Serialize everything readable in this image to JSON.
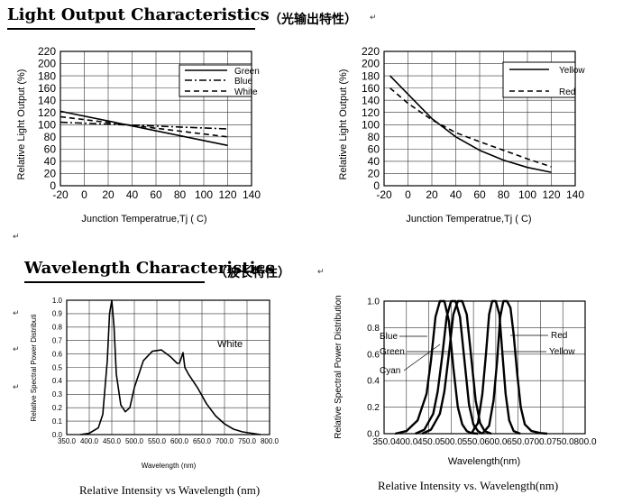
{
  "sections": {
    "light_output": {
      "title": "Light Output Characteristics",
      "title_cn": "（光输出特性）"
    },
    "wavelength": {
      "title": "Wavelength Characteristics",
      "title_cn": "（波长特性）"
    }
  },
  "marks": {
    "return_symbol": "↵"
  },
  "chart_data": [
    {
      "type": "line",
      "xlabel": "Junction Temperatrue,Tj ( C)",
      "ylabel": "Relative Light Output (%)",
      "xlim": [
        -20,
        140
      ],
      "ylim": [
        0,
        220
      ],
      "xticks": [
        -20,
        0,
        20,
        40,
        60,
        80,
        100,
        120,
        140
      ],
      "yticks": [
        0,
        20,
        40,
        60,
        80,
        100,
        120,
        140,
        160,
        180,
        200,
        220
      ],
      "grid": true,
      "legend_position": "top-right",
      "series": [
        {
          "name": "Green",
          "style": "solid",
          "x": [
            -20,
            120
          ],
          "y": [
            122,
            66
          ]
        },
        {
          "name": "Blue",
          "style": "dashdot",
          "x": [
            -20,
            120
          ],
          "y": [
            104,
            93
          ]
        },
        {
          "name": "White",
          "style": "dashed",
          "x": [
            -20,
            120
          ],
          "y": [
            113,
            80
          ]
        }
      ]
    },
    {
      "type": "line",
      "xlabel": "Junction Temperatrue,Tj ( C)",
      "ylabel": "Relative Light Output (%)",
      "xlim": [
        -20,
        140
      ],
      "ylim": [
        0,
        220
      ],
      "xticks": [
        -20,
        0,
        20,
        40,
        60,
        80,
        100,
        120,
        140
      ],
      "yticks": [
        0,
        20,
        40,
        60,
        80,
        100,
        120,
        140,
        160,
        180,
        200,
        220
      ],
      "grid": true,
      "legend_position": "top-right",
      "series": [
        {
          "name": "Yellow",
          "style": "solid",
          "x": [
            -15,
            0,
            20,
            40,
            60,
            80,
            100,
            120
          ],
          "y": [
            180,
            150,
            110,
            80,
            58,
            42,
            30,
            22
          ]
        },
        {
          "name": "Red",
          "style": "dashed",
          "x": [
            -15,
            0,
            20,
            40,
            60,
            80,
            100,
            120
          ],
          "y": [
            160,
            135,
            108,
            87,
            72,
            58,
            44,
            31
          ]
        }
      ]
    },
    {
      "type": "line",
      "title": "Relative Intensity vs Wavelength (nm)",
      "xlabel": "Wavelength (nm)",
      "ylabel": "Relative Spectral Power Distributi",
      "xlim": [
        350,
        800
      ],
      "ylim": [
        0,
        1
      ],
      "xticks": [
        350,
        400,
        450,
        500,
        550,
        600,
        650,
        700,
        750,
        800
      ],
      "yticks": [
        0.0,
        0.1,
        0.2,
        0.3,
        0.4,
        0.5,
        0.6,
        0.7,
        0.8,
        0.9,
        1.0
      ],
      "grid": true,
      "annotations": [
        "White"
      ],
      "series": [
        {
          "style": "solid",
          "x": [
            380,
            400,
            420,
            430,
            440,
            445,
            450,
            455,
            460,
            470,
            480,
            490,
            500,
            520,
            540,
            560,
            580,
            595,
            600,
            605,
            608,
            612,
            620,
            640,
            660,
            680,
            700,
            720,
            740,
            760,
            780
          ],
          "y": [
            0.0,
            0.01,
            0.05,
            0.15,
            0.55,
            0.9,
            1.0,
            0.8,
            0.45,
            0.22,
            0.17,
            0.2,
            0.35,
            0.55,
            0.62,
            0.63,
            0.58,
            0.53,
            0.53,
            0.58,
            0.61,
            0.5,
            0.45,
            0.35,
            0.23,
            0.14,
            0.08,
            0.04,
            0.02,
            0.01,
            0.0
          ]
        }
      ]
    },
    {
      "type": "line",
      "title": "Relative Intensity vs. Wavelength(nm)",
      "xlabel": "Wavelength(nm)",
      "ylabel": "Relative Spectral Power Distribution",
      "xlim": [
        350,
        800
      ],
      "ylim": [
        0,
        1
      ],
      "xticks": [
        350,
        400,
        450,
        500,
        550,
        600,
        650,
        700,
        750,
        800
      ],
      "yticks": [
        0.0,
        0.2,
        0.4,
        0.6,
        0.8,
        1.0
      ],
      "grid": true,
      "series": [
        {
          "name": "Blue",
          "style": "solid",
          "x": [
            375,
            400,
            425,
            445,
            455,
            465,
            475,
            485,
            495,
            505,
            515,
            525,
            535,
            545,
            560
          ],
          "y": [
            0,
            0.02,
            0.1,
            0.3,
            0.55,
            0.88,
            1.0,
            1.0,
            0.85,
            0.5,
            0.2,
            0.07,
            0.02,
            0.005,
            0
          ]
        },
        {
          "name": "Cyan",
          "style": "solid",
          "x": [
            420,
            440,
            460,
            470,
            480,
            490,
            500,
            510,
            520,
            530,
            540,
            550,
            560,
            570
          ],
          "y": [
            0,
            0.03,
            0.15,
            0.32,
            0.58,
            0.88,
            1.0,
            1.0,
            0.88,
            0.55,
            0.22,
            0.07,
            0.02,
            0
          ]
        },
        {
          "name": "Green",
          "style": "solid",
          "x": [
            435,
            455,
            475,
            485,
            495,
            505,
            515,
            525,
            535,
            545,
            555,
            565,
            575,
            590
          ],
          "y": [
            0,
            0.03,
            0.15,
            0.32,
            0.6,
            0.9,
            1.0,
            1.0,
            0.9,
            0.58,
            0.25,
            0.08,
            0.02,
            0
          ]
        },
        {
          "name": "Yellow",
          "style": "solid",
          "x": [
            545,
            560,
            570,
            578,
            585,
            592,
            600,
            608,
            615,
            622,
            630,
            640,
            655
          ],
          "y": [
            0,
            0.08,
            0.3,
            0.6,
            0.9,
            1.0,
            1.0,
            0.9,
            0.6,
            0.3,
            0.1,
            0.02,
            0
          ]
        },
        {
          "name": "Red",
          "style": "solid",
          "x": [
            570,
            585,
            595,
            603,
            610,
            617,
            625,
            633,
            640,
            648,
            656,
            665,
            680,
            700,
            715
          ],
          "y": [
            0,
            0.06,
            0.25,
            0.55,
            0.88,
            1.0,
            1.0,
            0.95,
            0.75,
            0.45,
            0.2,
            0.07,
            0.02,
            0.005,
            0
          ]
        }
      ]
    }
  ]
}
